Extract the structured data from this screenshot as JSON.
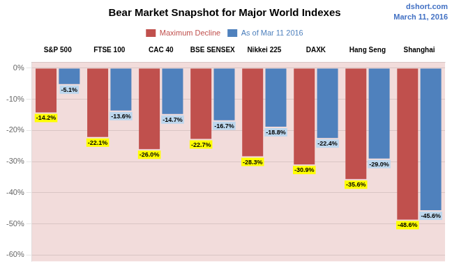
{
  "chart_data": {
    "type": "bar",
    "title": "Bear Market Snapshot for Major World Indexes",
    "annotations": [
      "dshort.com",
      "March 11, 2016"
    ],
    "categories": [
      "S&P 500",
      "FTSE 100",
      "CAC 40",
      "BSE SENSEX",
      "Nikkei 225",
      "DAXK",
      "Hang Seng",
      "Shanghai"
    ],
    "series": [
      {
        "name": "Maximum Decline",
        "color": "#C0504D",
        "values": [
          -14.2,
          -22.1,
          -26.0,
          -22.7,
          -28.3,
          -30.9,
          -35.6,
          -48.6
        ],
        "value_labels": [
          "-14.2%",
          "-22.1%",
          "-26.0%",
          "-22.7%",
          "-28.3%",
          "-30.9%",
          "-35.6%",
          "-48.6%"
        ]
      },
      {
        "name": "As of Mar 11 2016",
        "color": "#4F81BD",
        "values": [
          -5.1,
          -13.6,
          -14.7,
          -16.7,
          -18.8,
          -22.4,
          -29.0,
          -45.6
        ],
        "value_labels": [
          "-5.1%",
          "-13.6%",
          "-14.7%",
          "-16.7%",
          "-18.8%",
          "-22.4%",
          "-29.0%",
          "-45.6%"
        ]
      }
    ],
    "ylim": [
      -62,
      2
    ],
    "yticks": [
      {
        "value": 0,
        "label": "0%"
      },
      {
        "value": -10,
        "label": "-10%"
      },
      {
        "value": -20,
        "label": "-20%"
      },
      {
        "value": -30,
        "label": "-30%"
      },
      {
        "value": -40,
        "label": "-40%"
      },
      {
        "value": -50,
        "label": "-50%"
      },
      {
        "value": -60,
        "label": "-60%"
      }
    ],
    "grid": true,
    "legend": "top",
    "data_labels": true
  }
}
